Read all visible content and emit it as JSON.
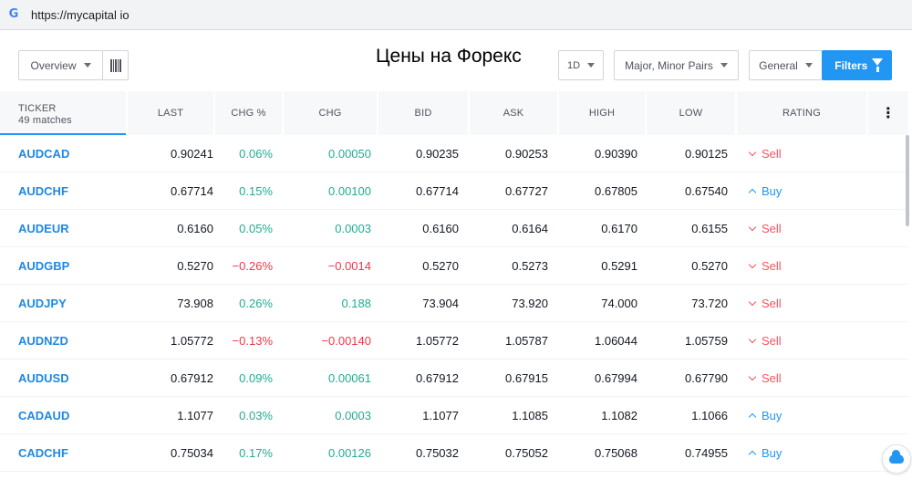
{
  "browser": {
    "url": "https://mycapital io",
    "logo": "G"
  },
  "toolbar": {
    "overview_label": "Overview",
    "title": "Цены на Форекс",
    "interval_label": "1D",
    "pairs_label": "Major, Minor Pairs",
    "general_label": "General",
    "filters_label": "Filters"
  },
  "table": {
    "headers": {
      "ticker": "TICKER",
      "matches": "49 matches",
      "last": "LAST",
      "chg_pct": "CHG %",
      "chg": "CHG",
      "bid": "BID",
      "ask": "ASK",
      "high": "HIGH",
      "low": "LOW",
      "rating": "RATING"
    },
    "rows": [
      {
        "ticker": "AUDCAD",
        "last": "0.90241",
        "chg_pct": "0.06%",
        "chg": "0.00050",
        "bid": "0.90235",
        "ask": "0.90253",
        "high": "0.90390",
        "low": "0.90125",
        "rating": "Sell",
        "dir": "pos"
      },
      {
        "ticker": "AUDCHF",
        "last": "0.67714",
        "chg_pct": "0.15%",
        "chg": "0.00100",
        "bid": "0.67714",
        "ask": "0.67727",
        "high": "0.67805",
        "low": "0.67540",
        "rating": "Buy",
        "dir": "pos"
      },
      {
        "ticker": "AUDEUR",
        "last": "0.6160",
        "chg_pct": "0.05%",
        "chg": "0.0003",
        "bid": "0.6160",
        "ask": "0.6164",
        "high": "0.6170",
        "low": "0.6155",
        "rating": "Sell",
        "dir": "pos"
      },
      {
        "ticker": "AUDGBP",
        "last": "0.5270",
        "chg_pct": "−0.26%",
        "chg": "−0.0014",
        "bid": "0.5270",
        "ask": "0.5273",
        "high": "0.5291",
        "low": "0.5270",
        "rating": "Sell",
        "dir": "neg"
      },
      {
        "ticker": "AUDJPY",
        "last": "73.908",
        "chg_pct": "0.26%",
        "chg": "0.188",
        "bid": "73.904",
        "ask": "73.920",
        "high": "74.000",
        "low": "73.720",
        "rating": "Sell",
        "dir": "pos"
      },
      {
        "ticker": "AUDNZD",
        "last": "1.05772",
        "chg_pct": "−0.13%",
        "chg": "−0.00140",
        "bid": "1.05772",
        "ask": "1.05787",
        "high": "1.06044",
        "low": "1.05759",
        "rating": "Sell",
        "dir": "neg"
      },
      {
        "ticker": "AUDUSD",
        "last": "0.67912",
        "chg_pct": "0.09%",
        "chg": "0.00061",
        "bid": "0.67912",
        "ask": "0.67915",
        "high": "0.67994",
        "low": "0.67790",
        "rating": "Sell",
        "dir": "pos"
      },
      {
        "ticker": "CADAUD",
        "last": "1.1077",
        "chg_pct": "0.03%",
        "chg": "0.0003",
        "bid": "1.1077",
        "ask": "1.1085",
        "high": "1.1082",
        "low": "1.1066",
        "rating": "Buy",
        "dir": "pos"
      },
      {
        "ticker": "CADCHF",
        "last": "0.75034",
        "chg_pct": "0.17%",
        "chg": "0.00126",
        "bid": "0.75032",
        "ask": "0.75052",
        "high": "0.75068",
        "low": "0.74955",
        "rating": "Buy",
        "dir": "pos"
      }
    ]
  },
  "colors": {
    "accent": "#2196f3",
    "positive": "#22ab94",
    "negative": "#f23645",
    "sell": "#f7525f",
    "ticker": "#1e88e5"
  },
  "icons": {
    "browser_logo": "google-icon",
    "columns": "barcode-columns-icon",
    "filter": "funnel-icon",
    "more": "kebab-menu-icon",
    "fab": "cloud-icon"
  }
}
